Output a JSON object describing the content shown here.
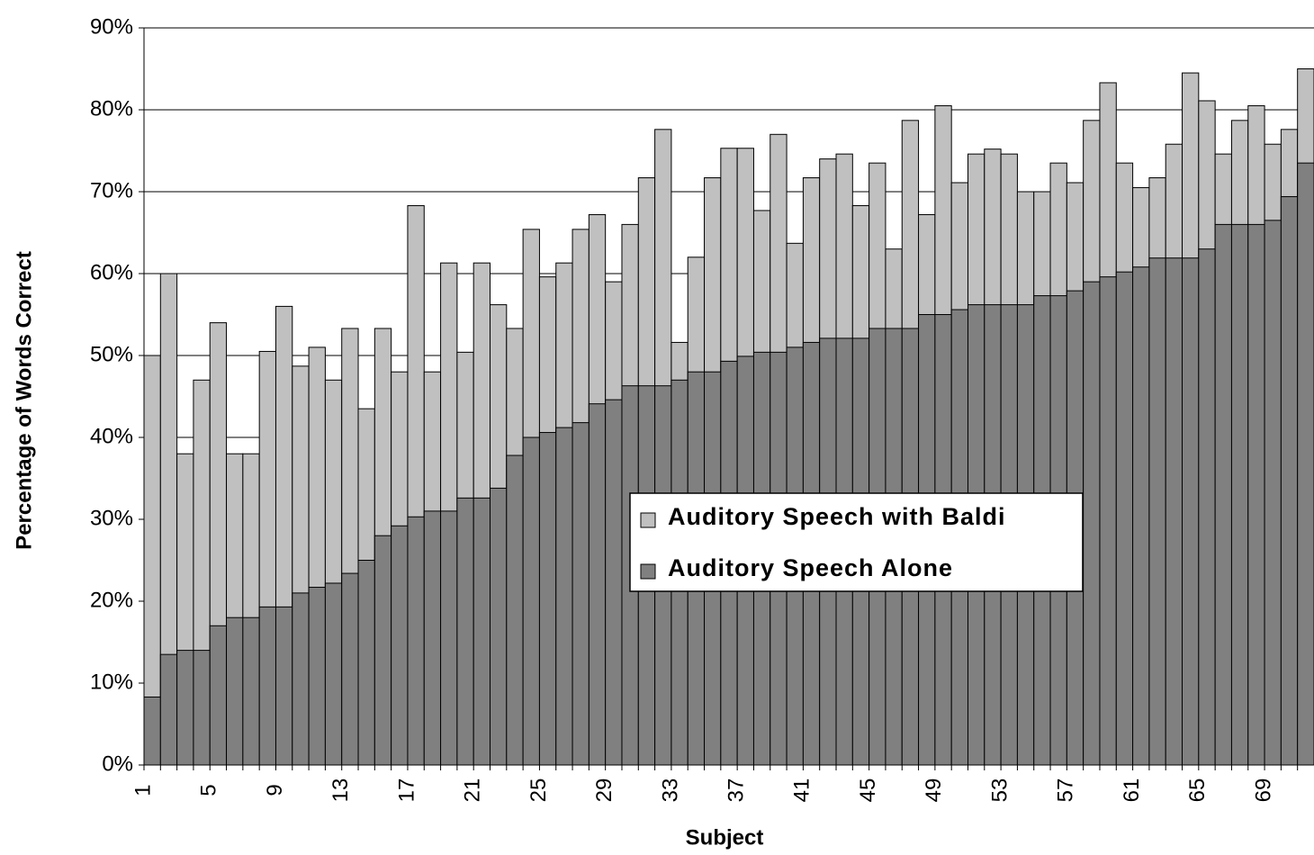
{
  "chart_data": {
    "type": "bar",
    "barmode": "overlay",
    "x_label": "Subject",
    "y_label": "Percentage of Words Correct",
    "categories": [
      "1",
      null,
      null,
      null,
      "5",
      null,
      null,
      null,
      "9",
      null,
      null,
      null,
      "13",
      null,
      null,
      null,
      "17",
      null,
      null,
      null,
      "21",
      null,
      null,
      null,
      "25",
      null,
      null,
      null,
      "29",
      null,
      null,
      null,
      "33",
      null,
      null,
      null,
      "37",
      null,
      null,
      null,
      "41",
      null,
      null,
      null,
      "45",
      null,
      null,
      null,
      "49",
      null,
      null,
      null,
      "53",
      null,
      null,
      null,
      "57",
      null,
      null,
      null,
      "61",
      null,
      null,
      null,
      "65",
      null,
      null,
      null,
      "69",
      null,
      null
    ],
    "series": [
      {
        "name": "Auditory Speech with Baldi",
        "color": "#c0c0c0",
        "values": [
          50,
          60,
          38,
          47,
          54,
          38,
          38,
          50.5,
          56,
          48.7,
          51,
          47,
          53.3,
          43.5,
          53.3,
          48,
          68.3,
          48,
          61.3,
          50.4,
          61.3,
          56.2,
          53.3,
          65.4,
          59.6,
          61.3,
          65.4,
          67.2,
          59,
          66,
          71.7,
          77.6,
          51.6,
          62,
          71.7,
          75.3,
          75.3,
          67.7,
          77,
          63.7,
          71.7,
          74,
          74.6,
          68.3,
          73.5,
          63,
          78.7,
          67.2,
          80.5,
          71.1,
          74.6,
          75.2,
          74.6,
          70,
          70,
          73.5,
          71.1,
          78.7,
          83.3,
          73.5,
          70.5,
          71.7,
          75.8,
          84.5,
          81.1,
          74.6,
          78.7,
          80.5,
          75.8,
          77.6,
          85
        ]
      },
      {
        "name": "Auditory Speech Alone",
        "color": "#808080",
        "values": [
          8.3,
          13.5,
          14,
          14,
          17,
          18,
          18,
          19.3,
          19.3,
          21,
          21.7,
          22.2,
          23.4,
          25,
          28,
          29.2,
          30.3,
          31,
          31,
          32.6,
          32.6,
          33.8,
          37.8,
          40,
          40.6,
          41.2,
          41.8,
          44.1,
          44.6,
          46.3,
          46.3,
          46.3,
          47,
          48,
          48,
          49.3,
          49.9,
          50.4,
          50.4,
          51,
          51.6,
          52.1,
          52.1,
          52.1,
          53.3,
          53.3,
          53.3,
          55,
          55,
          55.6,
          56.2,
          56.2,
          56.2,
          56.2,
          57.3,
          57.3,
          57.9,
          59,
          59.6,
          60.2,
          60.8,
          61.9,
          61.9,
          61.9,
          63,
          66,
          66,
          66,
          66.5,
          69.4,
          73.5
        ]
      }
    ],
    "ylim": [
      0,
      90
    ],
    "yticks": [
      {
        "value": 0,
        "label": "0%"
      },
      {
        "value": 10,
        "label": "10%"
      },
      {
        "value": 20,
        "label": "20%"
      },
      {
        "value": 30,
        "label": "30%"
      },
      {
        "value": 40,
        "label": "40%"
      },
      {
        "value": 50,
        "label": "50%"
      },
      {
        "value": 60,
        "label": "60%"
      },
      {
        "value": 70,
        "label": "70%"
      },
      {
        "value": 80,
        "label": "80%"
      },
      {
        "value": 90,
        "label": "90%"
      }
    ],
    "grid": true
  }
}
